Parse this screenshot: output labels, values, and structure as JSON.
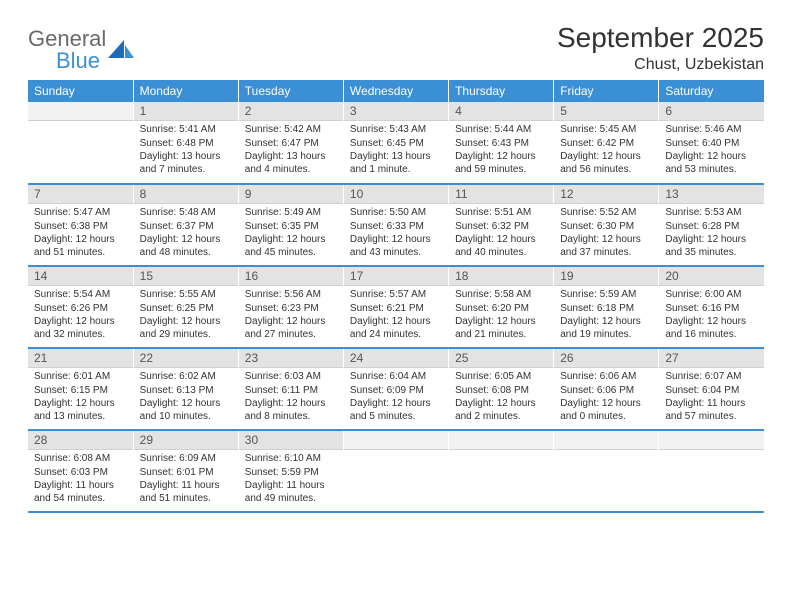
{
  "brand": {
    "general": "General",
    "blue": "Blue"
  },
  "title": "September 2025",
  "location": "Chust, Uzbekistan",
  "colors": {
    "accent": "#3b8fd4",
    "daynum_bg": "#e3e3e3",
    "text": "#333333"
  },
  "day_headers": [
    "Sunday",
    "Monday",
    "Tuesday",
    "Wednesday",
    "Thursday",
    "Friday",
    "Saturday"
  ],
  "font": {
    "header_size": 12,
    "title_size": 28,
    "cell_size": 10
  },
  "weeks": [
    [
      null,
      {
        "n": "1",
        "sr": "Sunrise: 5:41 AM",
        "ss": "Sunset: 6:48 PM",
        "dl": "Daylight: 13 hours and 7 minutes."
      },
      {
        "n": "2",
        "sr": "Sunrise: 5:42 AM",
        "ss": "Sunset: 6:47 PM",
        "dl": "Daylight: 13 hours and 4 minutes."
      },
      {
        "n": "3",
        "sr": "Sunrise: 5:43 AM",
        "ss": "Sunset: 6:45 PM",
        "dl": "Daylight: 13 hours and 1 minute."
      },
      {
        "n": "4",
        "sr": "Sunrise: 5:44 AM",
        "ss": "Sunset: 6:43 PM",
        "dl": "Daylight: 12 hours and 59 minutes."
      },
      {
        "n": "5",
        "sr": "Sunrise: 5:45 AM",
        "ss": "Sunset: 6:42 PM",
        "dl": "Daylight: 12 hours and 56 minutes."
      },
      {
        "n": "6",
        "sr": "Sunrise: 5:46 AM",
        "ss": "Sunset: 6:40 PM",
        "dl": "Daylight: 12 hours and 53 minutes."
      }
    ],
    [
      {
        "n": "7",
        "sr": "Sunrise: 5:47 AM",
        "ss": "Sunset: 6:38 PM",
        "dl": "Daylight: 12 hours and 51 minutes."
      },
      {
        "n": "8",
        "sr": "Sunrise: 5:48 AM",
        "ss": "Sunset: 6:37 PM",
        "dl": "Daylight: 12 hours and 48 minutes."
      },
      {
        "n": "9",
        "sr": "Sunrise: 5:49 AM",
        "ss": "Sunset: 6:35 PM",
        "dl": "Daylight: 12 hours and 45 minutes."
      },
      {
        "n": "10",
        "sr": "Sunrise: 5:50 AM",
        "ss": "Sunset: 6:33 PM",
        "dl": "Daylight: 12 hours and 43 minutes."
      },
      {
        "n": "11",
        "sr": "Sunrise: 5:51 AM",
        "ss": "Sunset: 6:32 PM",
        "dl": "Daylight: 12 hours and 40 minutes."
      },
      {
        "n": "12",
        "sr": "Sunrise: 5:52 AM",
        "ss": "Sunset: 6:30 PM",
        "dl": "Daylight: 12 hours and 37 minutes."
      },
      {
        "n": "13",
        "sr": "Sunrise: 5:53 AM",
        "ss": "Sunset: 6:28 PM",
        "dl": "Daylight: 12 hours and 35 minutes."
      }
    ],
    [
      {
        "n": "14",
        "sr": "Sunrise: 5:54 AM",
        "ss": "Sunset: 6:26 PM",
        "dl": "Daylight: 12 hours and 32 minutes."
      },
      {
        "n": "15",
        "sr": "Sunrise: 5:55 AM",
        "ss": "Sunset: 6:25 PM",
        "dl": "Daylight: 12 hours and 29 minutes."
      },
      {
        "n": "16",
        "sr": "Sunrise: 5:56 AM",
        "ss": "Sunset: 6:23 PM",
        "dl": "Daylight: 12 hours and 27 minutes."
      },
      {
        "n": "17",
        "sr": "Sunrise: 5:57 AM",
        "ss": "Sunset: 6:21 PM",
        "dl": "Daylight: 12 hours and 24 minutes."
      },
      {
        "n": "18",
        "sr": "Sunrise: 5:58 AM",
        "ss": "Sunset: 6:20 PM",
        "dl": "Daylight: 12 hours and 21 minutes."
      },
      {
        "n": "19",
        "sr": "Sunrise: 5:59 AM",
        "ss": "Sunset: 6:18 PM",
        "dl": "Daylight: 12 hours and 19 minutes."
      },
      {
        "n": "20",
        "sr": "Sunrise: 6:00 AM",
        "ss": "Sunset: 6:16 PM",
        "dl": "Daylight: 12 hours and 16 minutes."
      }
    ],
    [
      {
        "n": "21",
        "sr": "Sunrise: 6:01 AM",
        "ss": "Sunset: 6:15 PM",
        "dl": "Daylight: 12 hours and 13 minutes."
      },
      {
        "n": "22",
        "sr": "Sunrise: 6:02 AM",
        "ss": "Sunset: 6:13 PM",
        "dl": "Daylight: 12 hours and 10 minutes."
      },
      {
        "n": "23",
        "sr": "Sunrise: 6:03 AM",
        "ss": "Sunset: 6:11 PM",
        "dl": "Daylight: 12 hours and 8 minutes."
      },
      {
        "n": "24",
        "sr": "Sunrise: 6:04 AM",
        "ss": "Sunset: 6:09 PM",
        "dl": "Daylight: 12 hours and 5 minutes."
      },
      {
        "n": "25",
        "sr": "Sunrise: 6:05 AM",
        "ss": "Sunset: 6:08 PM",
        "dl": "Daylight: 12 hours and 2 minutes."
      },
      {
        "n": "26",
        "sr": "Sunrise: 6:06 AM",
        "ss": "Sunset: 6:06 PM",
        "dl": "Daylight: 12 hours and 0 minutes."
      },
      {
        "n": "27",
        "sr": "Sunrise: 6:07 AM",
        "ss": "Sunset: 6:04 PM",
        "dl": "Daylight: 11 hours and 57 minutes."
      }
    ],
    [
      {
        "n": "28",
        "sr": "Sunrise: 6:08 AM",
        "ss": "Sunset: 6:03 PM",
        "dl": "Daylight: 11 hours and 54 minutes."
      },
      {
        "n": "29",
        "sr": "Sunrise: 6:09 AM",
        "ss": "Sunset: 6:01 PM",
        "dl": "Daylight: 11 hours and 51 minutes."
      },
      {
        "n": "30",
        "sr": "Sunrise: 6:10 AM",
        "ss": "Sunset: 5:59 PM",
        "dl": "Daylight: 11 hours and 49 minutes."
      },
      null,
      null,
      null,
      null
    ]
  ]
}
